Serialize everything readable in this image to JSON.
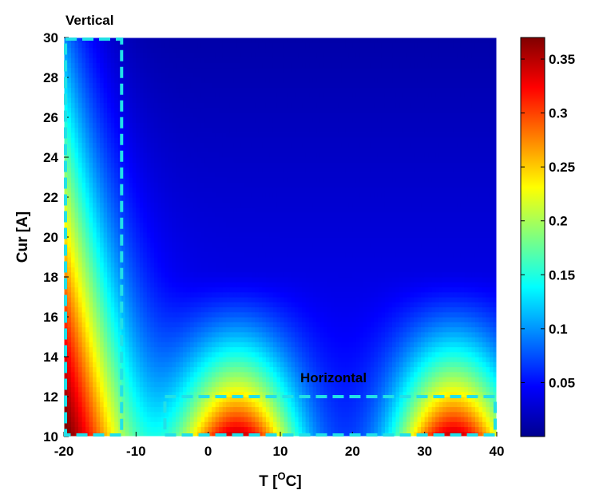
{
  "chart_data": {
    "type": "heatmap",
    "xlabel": "T [",
    "xlabel_sup": "O",
    "xlabel_tail": "C]",
    "ylabel": "Cur [A]",
    "xlim": [
      -20,
      40
    ],
    "ylim": [
      10,
      30
    ],
    "x_ticks": [
      "-20",
      "-10",
      "0",
      "10",
      "20",
      "30",
      "40"
    ],
    "y_ticks": [
      "10",
      "12",
      "14",
      "16",
      "18",
      "20",
      "22",
      "24",
      "26",
      "28",
      "30"
    ],
    "colorbar": {
      "colormap": "jet",
      "range": [
        0.0,
        0.37
      ],
      "ticks": [
        "0.05",
        "0.1",
        "0.15",
        "0.2",
        "0.25",
        "0.3",
        "0.35"
      ]
    },
    "annotations": [
      {
        "text": "Vertical",
        "box_x": [
          -20,
          -12
        ],
        "box_y": [
          10,
          30
        ],
        "color": "#22e0e8"
      },
      {
        "text": "Horizontal",
        "box_x": [
          -6,
          40
        ],
        "box_y": [
          10,
          12
        ],
        "color": "#22e0e8"
      }
    ]
  }
}
